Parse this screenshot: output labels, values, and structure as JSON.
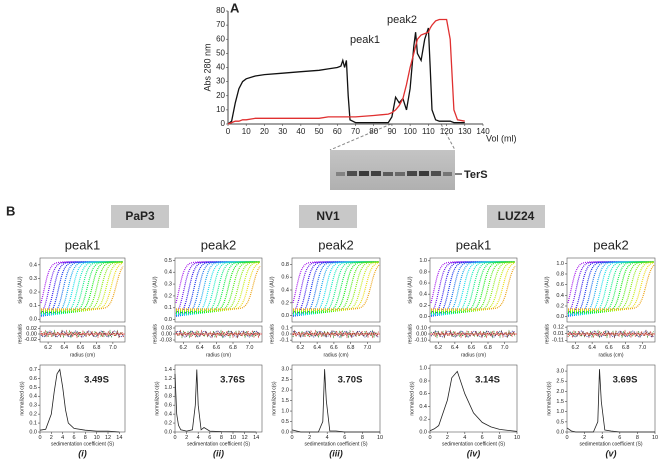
{
  "panel_labels": {
    "a": "A",
    "b": "B"
  },
  "groups": [
    "PaP3",
    "NV1",
    "LUZ24"
  ],
  "gel": {
    "label": "TerS"
  },
  "chart_data": [
    {
      "type": "line",
      "ylabel": "Abs 280 nm",
      "xlabel": "Vol (ml)",
      "xlim": [
        0,
        140
      ],
      "ylim": [
        0,
        80
      ],
      "xticks": [
        0,
        10,
        20,
        30,
        40,
        50,
        60,
        70,
        80,
        90,
        100,
        110,
        120,
        130,
        140
      ],
      "yticks": [
        0,
        10,
        20,
        30,
        40,
        50,
        60,
        70,
        80
      ],
      "annotations": [
        "peak1",
        "peak2"
      ],
      "x": [
        0,
        2,
        4,
        6,
        8,
        10,
        15,
        20,
        30,
        40,
        50,
        55,
        60,
        62,
        63,
        64,
        65,
        66,
        67,
        70,
        80,
        88,
        90,
        92,
        94,
        96,
        98,
        100,
        102,
        103,
        104,
        106,
        108,
        110,
        111,
        112,
        114,
        116,
        120,
        122,
        124,
        126,
        130
      ],
      "series": [
        {
          "color": "#111111",
          "values": [
            0,
            2,
            15,
            25,
            30,
            32,
            34,
            35,
            36,
            37,
            38,
            39,
            40,
            41,
            45,
            40,
            45,
            20,
            3,
            1,
            1,
            1,
            5,
            19,
            15,
            18,
            10,
            25,
            55,
            65,
            50,
            45,
            60,
            68,
            40,
            10,
            3,
            2,
            2,
            2,
            1,
            1,
            1
          ]
        },
        {
          "color": "#e03030",
          "values": [
            0,
            1,
            2,
            2,
            3,
            3,
            4,
            4,
            4,
            4,
            4,
            5,
            5,
            5,
            5,
            5,
            5,
            5,
            5,
            5,
            6,
            7,
            8,
            10,
            13,
            18,
            28,
            40,
            50,
            55,
            60,
            63,
            64,
            65,
            68,
            70,
            73,
            74,
            74,
            60,
            10,
            3,
            2
          ]
        }
      ]
    },
    {
      "type": "scatter",
      "title": "peak1",
      "ylabel": "signal (AU)",
      "xlim": [
        6.1,
        7.15
      ],
      "ylim": [
        -0.02,
        0.45
      ],
      "yticks": [
        {
          "value": 0,
          "label": "0.0"
        },
        0.1,
        0.2,
        0.3,
        0.4
      ]
    },
    {
      "type": "scatter",
      "ylabel": "residuals",
      "xlabel": "radius (cm)",
      "xlim": [
        6.1,
        7.15
      ],
      "ylim": [
        -0.03,
        0.03
      ],
      "yticks": [
        0.02,
        {
          "value": 0,
          "label": "0.00"
        },
        -0.02
      ],
      "xticks": [
        6.2,
        6.4,
        6.6,
        6.8,
        {
          "value": 7,
          "label": "7.0"
        }
      ]
    },
    {
      "type": "line",
      "ylabel": "normalized c(s)",
      "xlabel": "sedimentation coefficient (S)",
      "annotation": "3.49S",
      "panel": "(i)",
      "xlim": [
        0,
        15
      ],
      "ylim": [
        0,
        0.75
      ],
      "yticks": [
        {
          "value": 0,
          "label": "0.0"
        },
        0.1,
        0.2,
        0.3,
        0.4,
        0.5,
        0.6,
        0.7
      ],
      "xticks": [
        0,
        2,
        4,
        6,
        8,
        10,
        12,
        14
      ],
      "x": [
        0,
        1,
        2,
        2.5,
        3,
        3.49,
        4,
        4.5,
        5,
        6,
        8,
        10,
        12,
        14
      ],
      "values": [
        0.02,
        0.03,
        0.2,
        0.45,
        0.65,
        0.7,
        0.5,
        0.25,
        0.1,
        0.04,
        0.02,
        0.01,
        0.01,
        0
      ]
    },
    {
      "type": "scatter",
      "title": "peak2",
      "ylabel": "signal (AU)",
      "xlim": [
        6.1,
        7.15
      ],
      "ylim": [
        -0.02,
        0.52
      ],
      "yticks": [
        {
          "value": 0,
          "label": "0.0"
        },
        0.1,
        0.2,
        0.3,
        0.4,
        0.5
      ]
    },
    {
      "type": "scatter",
      "ylabel": "residuals",
      "xlabel": "radius (cm)",
      "xlim": [
        6.1,
        7.15
      ],
      "ylim": [
        -0.04,
        0.04
      ],
      "yticks": [
        0.03,
        {
          "value": 0,
          "label": "0.00"
        },
        -0.03
      ],
      "xticks": [
        6.2,
        6.4,
        6.6,
        6.8,
        {
          "value": 7,
          "label": "7.0"
        }
      ]
    },
    {
      "type": "line",
      "ylabel": "normalized c(s)",
      "xlabel": "sedimentation coefficient (S)",
      "annotation": "3.76S",
      "panel": "(ii)",
      "xlim": [
        0,
        15
      ],
      "ylim": [
        0,
        1.5
      ],
      "yticks": [
        {
          "value": 0,
          "label": "0.0"
        },
        0.2,
        0.4,
        0.6,
        0.8,
        {
          "value": 1,
          "label": "1.0"
        },
        1.2,
        1.4
      ],
      "xticks": [
        0,
        2,
        4,
        6,
        8,
        10,
        12,
        14
      ],
      "x": [
        0,
        0.3,
        0.6,
        1,
        2,
        3,
        3.5,
        3.76,
        4,
        4.5,
        5,
        6,
        8,
        14
      ],
      "values": [
        1.3,
        0.4,
        0.15,
        0.05,
        0.02,
        0.05,
        0.6,
        1.4,
        0.6,
        0.05,
        0.1,
        0.02,
        0.01,
        0
      ]
    },
    {
      "type": "scatter",
      "title": "peak2",
      "ylabel": "signal (AU)",
      "xlim": [
        6.1,
        7.15
      ],
      "ylim": [
        -0.1,
        0.9
      ],
      "yticks": [
        {
          "value": 0,
          "label": "0.0"
        },
        0.2,
        0.4,
        0.6,
        0.8
      ]
    },
    {
      "type": "scatter",
      "ylabel": "residuals",
      "xlabel": "radius (cm)",
      "xlim": [
        6.1,
        7.15
      ],
      "ylim": [
        -0.13,
        0.13
      ],
      "yticks": [
        0.1,
        {
          "value": 0,
          "label": "0.0"
        },
        -0.1
      ],
      "xticks": [
        6.2,
        6.4,
        6.6,
        6.8,
        {
          "value": 7,
          "label": "7.0"
        }
      ]
    },
    {
      "type": "line",
      "ylabel": "normalized c(s)",
      "xlabel": "sedimentation coefficient (S)",
      "annotation": "3.70S",
      "panel": "(iii)",
      "xlim": [
        0,
        10
      ],
      "ylim": [
        0,
        3.2
      ],
      "yticks": [
        {
          "value": 0,
          "label": "0.0"
        },
        0.5,
        {
          "value": 1,
          "label": "1.0"
        },
        1.5,
        {
          "value": 2,
          "label": "2.0"
        },
        2.5,
        {
          "value": 3,
          "label": "3.0"
        }
      ],
      "xticks": [
        0,
        2,
        4,
        6,
        8,
        10
      ],
      "x": [
        0,
        0.5,
        1,
        2,
        3,
        3.5,
        3.7,
        3.9,
        4.3,
        5,
        6,
        10
      ],
      "values": [
        0.1,
        0.05,
        0,
        0,
        0,
        0.5,
        3.0,
        1.5,
        0.05,
        0.05,
        0,
        0
      ]
    },
    {
      "type": "scatter",
      "title": "peak1",
      "ylabel": "signal (AU)",
      "xlim": [
        6.1,
        7.15
      ],
      "ylim": [
        -0.1,
        1.05
      ],
      "yticks": [
        {
          "value": 0,
          "label": "0.0"
        },
        0.2,
        0.4,
        0.6,
        0.8,
        {
          "value": 1,
          "label": "1.0"
        }
      ]
    },
    {
      "type": "scatter",
      "ylabel": "residuals",
      "xlabel": "radius (cm)",
      "xlim": [
        6.1,
        7.15
      ],
      "ylim": [
        -0.13,
        0.13
      ],
      "yticks": [
        {
          "value": 0.1,
          "label": "0.10"
        },
        {
          "value": 0,
          "label": "0.00"
        },
        {
          "value": -0.1,
          "label": "-0.10"
        }
      ],
      "xticks": [
        6.2,
        6.4,
        6.6,
        6.8,
        {
          "value": 7,
          "label": "7.0"
        }
      ]
    },
    {
      "type": "line",
      "ylabel": "normalized c(s)",
      "xlabel": "sedimentation coefficient (S)",
      "annotation": "3.14S",
      "panel": "(iv)",
      "xlim": [
        0,
        10
      ],
      "ylim": [
        0,
        1.05
      ],
      "yticks": [
        {
          "value": 0,
          "label": "0.0"
        },
        0.2,
        0.4,
        0.6,
        0.8,
        {
          "value": 1,
          "label": "1.0"
        }
      ],
      "xticks": [
        0,
        2,
        4,
        6,
        8,
        10
      ],
      "x": [
        0,
        0.5,
        1,
        2,
        2.5,
        3.14,
        4,
        5,
        6,
        7,
        8,
        10
      ],
      "values": [
        0.02,
        0.05,
        0.1,
        0.5,
        0.85,
        0.95,
        0.6,
        0.3,
        0.15,
        0.08,
        0.04,
        0.01
      ]
    },
    {
      "type": "scatter",
      "title": "peak2",
      "ylabel": "signal (AU)",
      "xlim": [
        6.1,
        7.15
      ],
      "ylim": [
        -0.1,
        1.1
      ],
      "yticks": [
        {
          "value": 0,
          "label": "0.0"
        },
        0.2,
        0.4,
        0.6,
        0.8,
        {
          "value": 1,
          "label": "1.0"
        }
      ]
    },
    {
      "type": "scatter",
      "ylabel": "residuals",
      "xlabel": "radius (cm)",
      "xlim": [
        6.1,
        7.15
      ],
      "ylim": [
        -0.14,
        0.14
      ],
      "yticks": [
        0.12,
        0.01,
        -0.11
      ],
      "xticks": [
        6.2,
        6.4,
        6.6,
        6.8,
        {
          "value": 7,
          "label": "7.0"
        }
      ]
    },
    {
      "type": "line",
      "ylabel": "normalized c(s)",
      "xlabel": "sedimentation coefficient (S)",
      "annotation": "3.69S",
      "panel": "(v)",
      "xlim": [
        0,
        10
      ],
      "ylim": [
        0,
        3.3
      ],
      "yticks": [
        {
          "value": 0,
          "label": "0.0"
        },
        0.5,
        {
          "value": 1,
          "label": "1.0"
        },
        1.5,
        {
          "value": 2,
          "label": "2.0"
        },
        2.5,
        {
          "value": 3,
          "label": "3.0"
        }
      ],
      "xticks": [
        0,
        2,
        4,
        6,
        8,
        10
      ],
      "x": [
        0,
        0.5,
        1,
        2,
        3,
        3.5,
        3.69,
        3.9,
        4.3,
        5,
        6,
        10
      ],
      "values": [
        0.2,
        0.05,
        0,
        0,
        0,
        0.5,
        3.1,
        1.5,
        0.1,
        0.05,
        0,
        0
      ]
    }
  ]
}
